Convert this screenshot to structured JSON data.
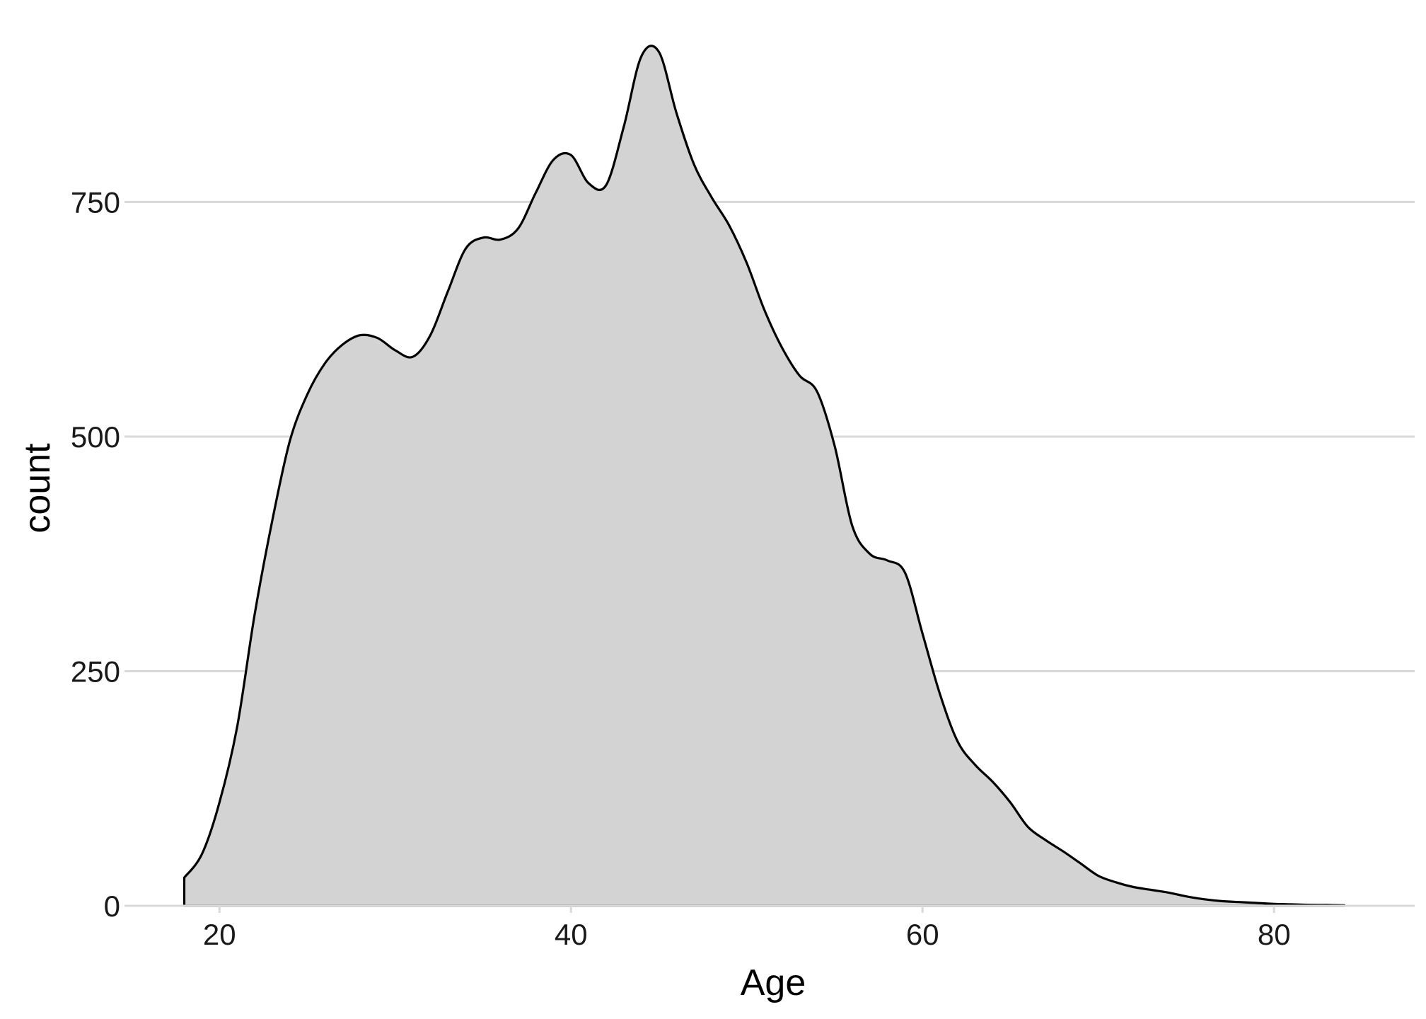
{
  "chart_data": {
    "type": "area",
    "subtype": "density",
    "title": "",
    "xlabel": "Age",
    "ylabel": "count",
    "xlim": [
      15,
      88
    ],
    "ylim": [
      0,
      920
    ],
    "x_ticks": [
      20,
      40,
      60,
      80
    ],
    "y_ticks": [
      0,
      250,
      500,
      750
    ],
    "x_tick_labels": [
      "20",
      "40",
      "60",
      "80"
    ],
    "y_tick_labels": [
      "0",
      "250",
      "500",
      "750"
    ],
    "grid": "horizontal-major",
    "legend": "none",
    "fill_color": "#d3d3d3",
    "line_color": "#000000",
    "series": [
      {
        "x": [
          18,
          19,
          20,
          21,
          22,
          23,
          24,
          25,
          26,
          27,
          28,
          29,
          30,
          31,
          32,
          33,
          34,
          35,
          36,
          37,
          38,
          39,
          40,
          41,
          42,
          43,
          44,
          45,
          46,
          47,
          48,
          49,
          50,
          51,
          52,
          53,
          54,
          55,
          56,
          57,
          58,
          59,
          60,
          61,
          62,
          63,
          64,
          65,
          66,
          67,
          68,
          69,
          70,
          71,
          72,
          73,
          74,
          75,
          76,
          77,
          78,
          79,
          80,
          81,
          82,
          83,
          84
        ],
        "y": [
          30,
          55,
          110,
          190,
          310,
          410,
          495,
          545,
          578,
          598,
          608,
          605,
          592,
          585,
          608,
          655,
          700,
          712,
          710,
          722,
          760,
          795,
          800,
          770,
          768,
          830,
          905,
          910,
          845,
          790,
          755,
          725,
          685,
          635,
          595,
          565,
          548,
          490,
          405,
          375,
          368,
          355,
          290,
          225,
          175,
          150,
          132,
          110,
          84,
          70,
          58,
          45,
          32,
          25,
          20,
          17,
          14,
          10,
          7,
          5,
          4,
          3,
          2,
          1.5,
          1,
          0.8,
          0.5
        ]
      }
    ]
  }
}
